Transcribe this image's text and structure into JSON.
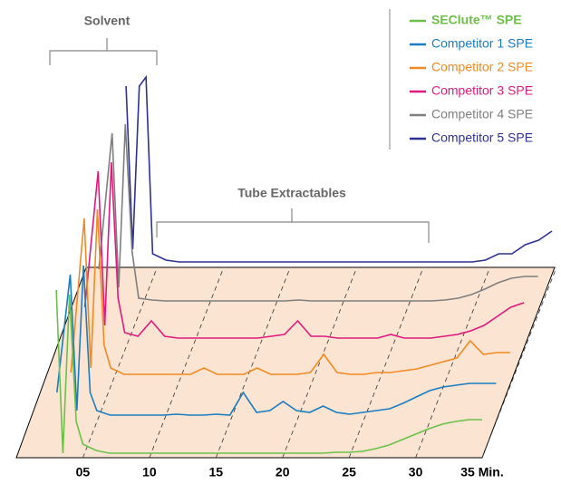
{
  "chart_data": {
    "type": "line",
    "annotations": [
      "Solvent",
      "Tube Extractables"
    ],
    "x": [
      2,
      3,
      3.5,
      4,
      4.5,
      5,
      6,
      7,
      8,
      9,
      10,
      11,
      12,
      13,
      14,
      15,
      16,
      17,
      18,
      19,
      20,
      21,
      22,
      23,
      24,
      25,
      26,
      27,
      28,
      29,
      30,
      31,
      32,
      33,
      34,
      35
    ],
    "xlim": [
      0,
      35
    ],
    "xticks": [
      {
        "value": 5,
        "label": "05"
      },
      10,
      15,
      20,
      25,
      30,
      {
        "value": 35,
        "label": "35 Min."
      }
    ],
    "grid": true,
    "legend": "top-right",
    "series": [
      {
        "name": "SEClute™ SPE",
        "color": "#6cc04a",
        "values": [
          null,
          185,
          5,
          180,
          40,
          15,
          8,
          5,
          5,
          5,
          5,
          5,
          5,
          5,
          5,
          5,
          5,
          5,
          5,
          5,
          5,
          5,
          5,
          5,
          6,
          6,
          7,
          10,
          14,
          20,
          26,
          32,
          37,
          40,
          42,
          42
        ]
      },
      {
        "name": "Competitor 1 SPE",
        "color": "#1a7dc1",
        "values": [
          30,
          160,
          10,
          170,
          30,
          10,
          5,
          5,
          5,
          5,
          5,
          6,
          5,
          5,
          6,
          5,
          30,
          8,
          10,
          20,
          10,
          8,
          15,
          8,
          6,
          8,
          10,
          12,
          18,
          25,
          32,
          36,
          38,
          40,
          40,
          40
        ]
      },
      {
        "name": "Competitor 2 SPE",
        "color": "#f08a24",
        "values": [
          10,
          180,
          15,
          190,
          40,
          15,
          8,
          8,
          8,
          8,
          8,
          8,
          15,
          8,
          8,
          8,
          15,
          8,
          8,
          8,
          10,
          30,
          10,
          8,
          8,
          10,
          10,
          12,
          14,
          18,
          22,
          26,
          45,
          30,
          32,
          32
        ]
      },
      {
        "name": "Competitor 3 SPE",
        "color": "#e0197d",
        "values": [
          40,
          190,
          20,
          200,
          50,
          12,
          8,
          25,
          8,
          6,
          6,
          6,
          6,
          6,
          6,
          6,
          8,
          10,
          25,
          8,
          8,
          6,
          6,
          6,
          6,
          10,
          6,
          6,
          6,
          8,
          10,
          14,
          20,
          30,
          40,
          45
        ]
      },
      {
        "name": "Competitor 4 SPE",
        "color": "#7f7f7f",
        "values": [
          40,
          190,
          20,
          200,
          60,
          8,
          6,
          5,
          5,
          5,
          5,
          5,
          5,
          5,
          5,
          5,
          5,
          6,
          5,
          5,
          5,
          5,
          5,
          5,
          5,
          5,
          5,
          5,
          6,
          8,
          12,
          18,
          25,
          30,
          32,
          32
        ]
      },
      {
        "name": "Competitor 5 SPE",
        "color": "#2e3192",
        "values": [
          null,
          200,
          20,
          200,
          210,
          15,
          8,
          6,
          6,
          6,
          6,
          6,
          6,
          6,
          6,
          6,
          6,
          6,
          6,
          6,
          6,
          6,
          6,
          6,
          6,
          6,
          6,
          6,
          6,
          6,
          8,
          15,
          15,
          25,
          30,
          40
        ]
      }
    ]
  }
}
